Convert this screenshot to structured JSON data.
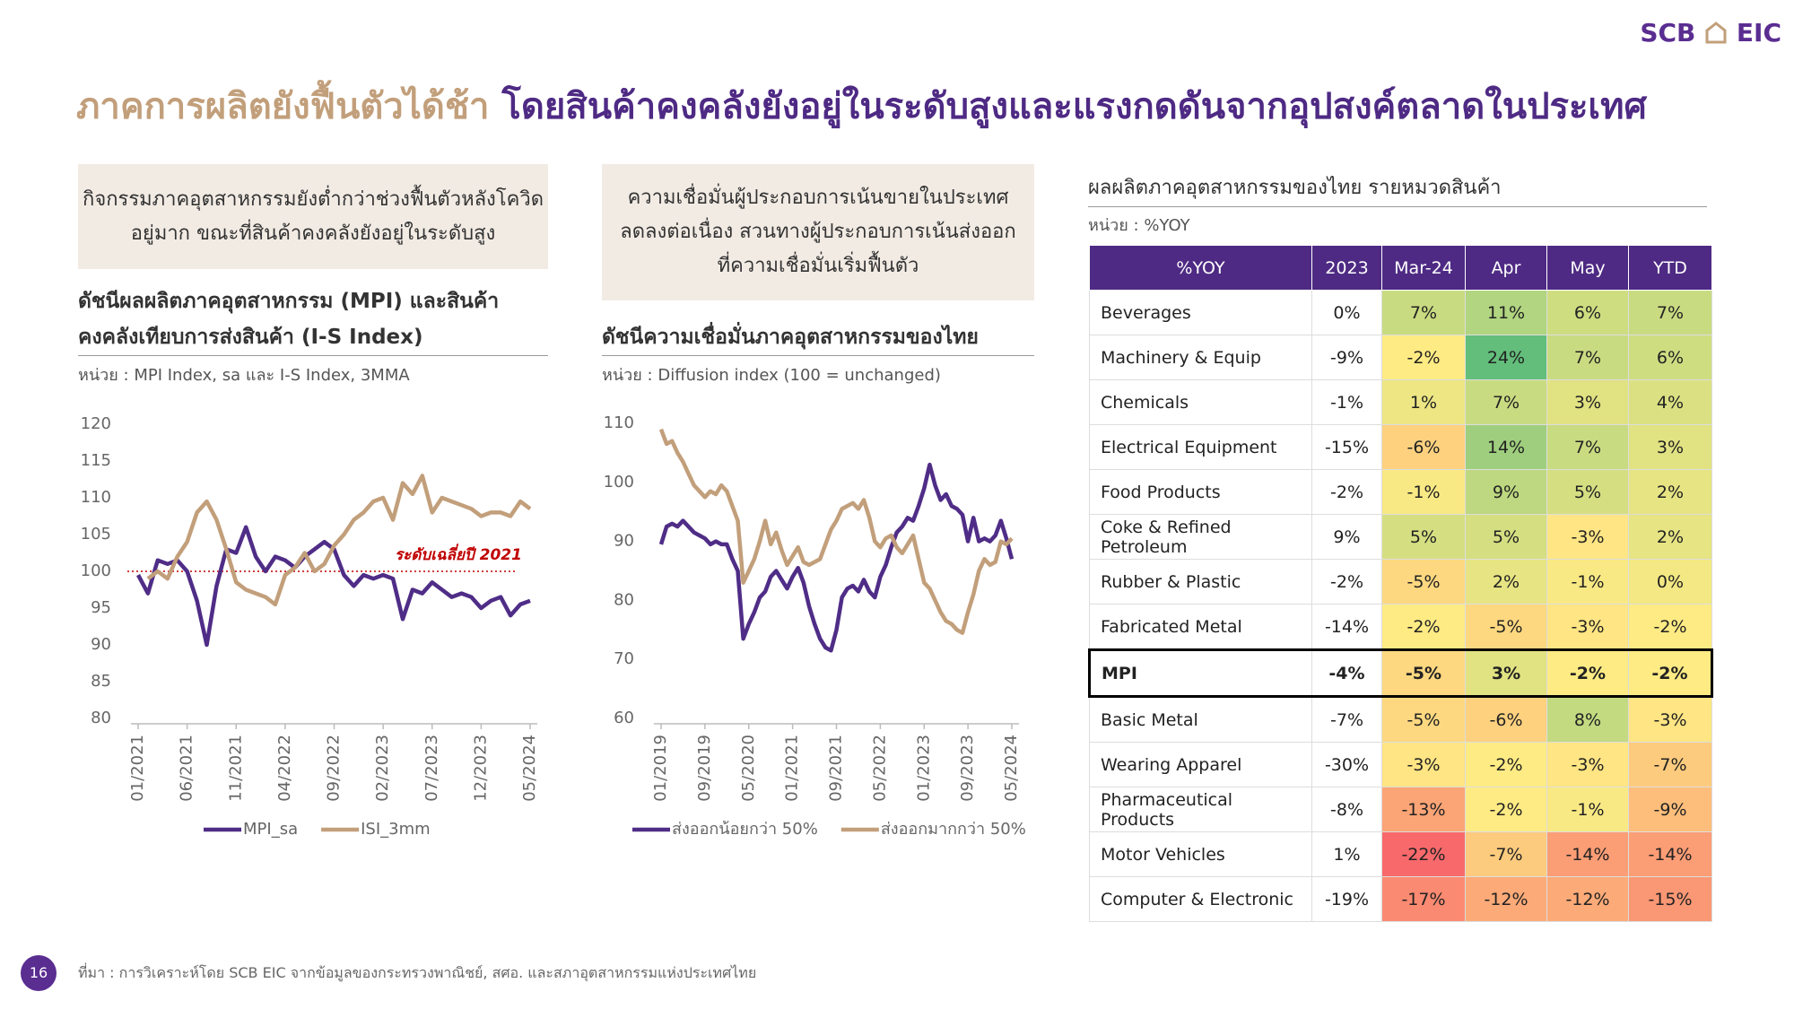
{
  "logo": [
    "SCB",
    "EIC"
  ],
  "header": {
    "title_1": "ภาคการผลิตยังฟื้นตัวได้ช้า",
    "title_2": "โดยสินค้าคงคลังยังอยู่ในระดับสูงและแรงกดดันจากอุปสงค์ตลาดในประเทศ"
  },
  "panels": [
    {
      "note": [
        "กิจกรรมภาคอุตสาหกรรมยังต่ำกว่าช่วงฟื้นตัวหลังโควิด",
        "อยู่มาก ขณะที่สินค้าคงคลังยังอยู่ในระดับสูง"
      ]
    },
    {
      "note": [
        "ความเชื่อมั่นผู้ประกอบการเน้นขายในประเทศ",
        "ลดลงต่อเนื่อง สวนทางผู้ประกอบการเน้นส่งออก",
        "ที่ความเชื่อมั่นเริ่มฟื้นตัว"
      ]
    }
  ],
  "chart_data": [
    {
      "type": "line",
      "title": [
        "ดัชนีผลผลิตภาคอุตสาหกรรม (MPI) และสินค้า",
        "คงคลังเทียบการส่งสินค้า (I-S Index)"
      ],
      "unit": "หน่วย : MPI Index, sa และ I-S Index, 3MMA",
      "categories": [
        "01/2021",
        null,
        null,
        null,
        null,
        "06/2021",
        null,
        null,
        null,
        null,
        "11/2021",
        null,
        null,
        null,
        null,
        "04/2022",
        null,
        null,
        null,
        null,
        "09/2022",
        null,
        null,
        null,
        null,
        "02/2023",
        null,
        null,
        null,
        null,
        "07/2023",
        null,
        null,
        null,
        null,
        "12/2023",
        null,
        null,
        null,
        null,
        "05/2024"
      ],
      "series": [
        {
          "name": "MPI_sa",
          "color": "#4f2d87",
          "values": [
            99.5,
            97,
            101.5,
            101,
            101.5,
            100,
            96,
            90,
            98,
            103,
            102.5,
            106,
            102,
            100,
            102,
            101.5,
            100.5,
            102,
            103,
            104,
            103,
            99.5,
            98,
            99.5,
            99,
            99.5,
            99,
            93.5,
            97.5,
            97,
            98.5,
            97.5,
            96.5,
            97,
            96.5,
            95,
            96,
            96.5,
            94,
            95.5,
            96
          ]
        },
        {
          "name": "ISI_3mm",
          "color": "#c29f7b",
          "values": [
            null,
            99,
            100,
            99,
            102,
            104,
            108,
            109.5,
            107,
            103,
            98.5,
            97.5,
            97,
            96.5,
            95.5,
            99.5,
            100.5,
            102.5,
            100,
            101,
            103.5,
            105,
            107,
            108,
            109.5,
            110,
            107,
            112,
            110.5,
            113,
            108,
            110,
            109.5,
            109,
            108.5,
            107.5,
            108,
            108,
            107.5,
            109.5,
            108.5
          ]
        }
      ],
      "ylim": [
        80,
        120
      ],
      "yticks": [
        80,
        85,
        90,
        95,
        100,
        105,
        110,
        115,
        120
      ],
      "reference": {
        "value": 100,
        "label": "ระดับเฉลี่ยปี 2021",
        "color": "#c00000"
      }
    },
    {
      "type": "line",
      "title": [
        "ดัชนีความเชื่อมั่นภาคอุตสาหกรรมของไทย"
      ],
      "unit": "หน่วย : Diffusion index (100 = unchanged)",
      "categories": [
        "01/2019",
        null,
        null,
        null,
        null,
        null,
        null,
        null,
        "09/2019",
        null,
        null,
        null,
        null,
        null,
        null,
        null,
        "05/2020",
        null,
        null,
        null,
        null,
        null,
        null,
        null,
        "01/2021",
        null,
        null,
        null,
        null,
        null,
        null,
        null,
        "09/2021",
        null,
        null,
        null,
        null,
        null,
        null,
        null,
        "05/2022",
        null,
        null,
        null,
        null,
        null,
        null,
        null,
        "01/2023",
        null,
        null,
        null,
        null,
        null,
        null,
        null,
        "09/2023",
        null,
        null,
        null,
        null,
        null,
        null,
        null,
        "05/2024"
      ],
      "series": [
        {
          "name": "ส่งออกน้อยกว่า 50%",
          "color": "#4f2d87",
          "values": [
            89.5,
            92.5,
            93,
            92.5,
            93.5,
            92.5,
            91.5,
            91,
            90.5,
            89.5,
            90,
            89.5,
            89.5,
            87,
            85,
            73.5,
            76,
            78,
            80.5,
            81.5,
            84,
            85,
            83.5,
            82,
            84,
            85.5,
            83,
            79,
            76,
            73.5,
            72,
            71.5,
            75,
            80.5,
            82,
            82.5,
            81.5,
            83.5,
            81.5,
            80.5,
            84,
            86,
            89,
            91.5,
            92.5,
            94,
            93.5,
            96,
            99,
            103,
            99.5,
            97,
            98,
            96,
            95.5,
            94.5,
            90,
            94,
            90,
            90.5,
            90,
            91,
            93.5,
            90.5,
            87
          ]
        },
        {
          "name": "ส่งออกมากกว่า 50%",
          "color": "#c29f7b",
          "values": [
            109,
            106.5,
            107,
            105,
            103.5,
            101.5,
            99.5,
            98.5,
            97.5,
            98.5,
            98,
            99.5,
            98.5,
            96,
            93.5,
            83,
            85,
            87,
            90,
            93.5,
            89.5,
            91.5,
            88.5,
            86,
            87.5,
            89,
            86.5,
            86,
            86.5,
            87,
            89.5,
            92,
            93.5,
            95.5,
            96,
            96.5,
            95.5,
            97,
            94,
            90,
            89,
            90.5,
            91,
            89,
            88,
            89.5,
            91,
            87,
            83,
            82,
            80,
            78,
            76.5,
            76,
            75,
            74.5,
            78,
            81,
            85,
            87,
            86,
            86.5,
            90,
            89.5,
            90.5
          ]
        }
      ],
      "ylim": [
        60,
        110
      ],
      "yticks": [
        60,
        70,
        80,
        90,
        100,
        110
      ]
    }
  ],
  "table": {
    "title": "ผลผลิตภาคอุตสาหกรรมของไทย รายหมวดสินค้า",
    "unit": "หน่วย : %YOY",
    "header_color": "#4e2a84",
    "heat_colors": [
      "#f8696b",
      "#ffeb84",
      "#63be7b"
    ],
    "columns": [
      "%YOY",
      "2023",
      "Mar-24",
      "Apr",
      "May",
      "YTD"
    ],
    "rows": [
      {
        "cells": [
          "Beverages",
          "0%",
          "7%",
          "11%",
          "6%",
          "7%"
        ]
      },
      {
        "cells": [
          "Machinery & Equip",
          "-9%",
          "-2%",
          "24%",
          "7%",
          "6%"
        ]
      },
      {
        "cells": [
          "Chemicals",
          "-1%",
          "1%",
          "7%",
          "3%",
          "4%"
        ]
      },
      {
        "cells": [
          "Electrical Equipment",
          "-15%",
          "-6%",
          "14%",
          "7%",
          "3%"
        ]
      },
      {
        "cells": [
          "Food Products",
          "-2%",
          "-1%",
          "9%",
          "5%",
          "2%"
        ]
      },
      {
        "cells": [
          "Coke & Refined Petroleum",
          "9%",
          "5%",
          "5%",
          "-3%",
          "2%"
        ]
      },
      {
        "cells": [
          "Rubber & Plastic",
          "-2%",
          "-5%",
          "2%",
          "-1%",
          "0%"
        ]
      },
      {
        "cells": [
          "Fabricated Metal",
          "-14%",
          "-2%",
          "-5%",
          "-3%",
          "-2%"
        ]
      },
      {
        "cells": [
          "MPI",
          "-4%",
          "-5%",
          "3%",
          "-2%",
          "-2%"
        ],
        "highlight": true
      },
      {
        "cells": [
          "Basic Metal",
          "-7%",
          "-5%",
          "-6%",
          "8%",
          "-3%"
        ]
      },
      {
        "cells": [
          "Wearing Apparel",
          "-30%",
          "-3%",
          "-2%",
          "-3%",
          "-7%"
        ]
      },
      {
        "cells": [
          "Pharmaceutical Products",
          "-8%",
          "-13%",
          "-2%",
          "-1%",
          "-9%"
        ]
      },
      {
        "cells": [
          "Motor Vehicles",
          "1%",
          "-22%",
          "-7%",
          "-14%",
          "-14%"
        ]
      },
      {
        "cells": [
          "Computer & Electronic",
          "-19%",
          "-17%",
          "-12%",
          "-12%",
          "-15%"
        ]
      }
    ]
  },
  "footer": {
    "page": 16,
    "source": "ที่มา : การวิเคราะห์โดย SCB EIC จากข้อมูลของกระทรวงพาณิชย์, สศอ. และสภาอุตสาหกรรมแห่งประเทศไทย"
  }
}
